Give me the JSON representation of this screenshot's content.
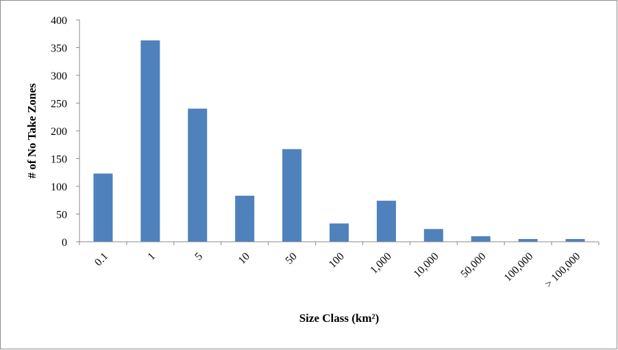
{
  "chart_data": {
    "type": "bar",
    "xlabel": "Size Class (km²)",
    "ylabel": "# of No Take Zones",
    "categories": [
      "0.1",
      "1",
      "5",
      "10",
      "50",
      "100",
      "1,000",
      "10,000",
      "50,000",
      "100,000",
      "> 100,000"
    ],
    "values": [
      123,
      363,
      240,
      83,
      167,
      33,
      74,
      23,
      10,
      5,
      5
    ],
    "color": "#4f81bd",
    "ylim": [
      0,
      400
    ],
    "yticks": [
      0,
      50,
      100,
      150,
      200,
      250,
      300,
      350,
      400
    ],
    "grid": false
  }
}
